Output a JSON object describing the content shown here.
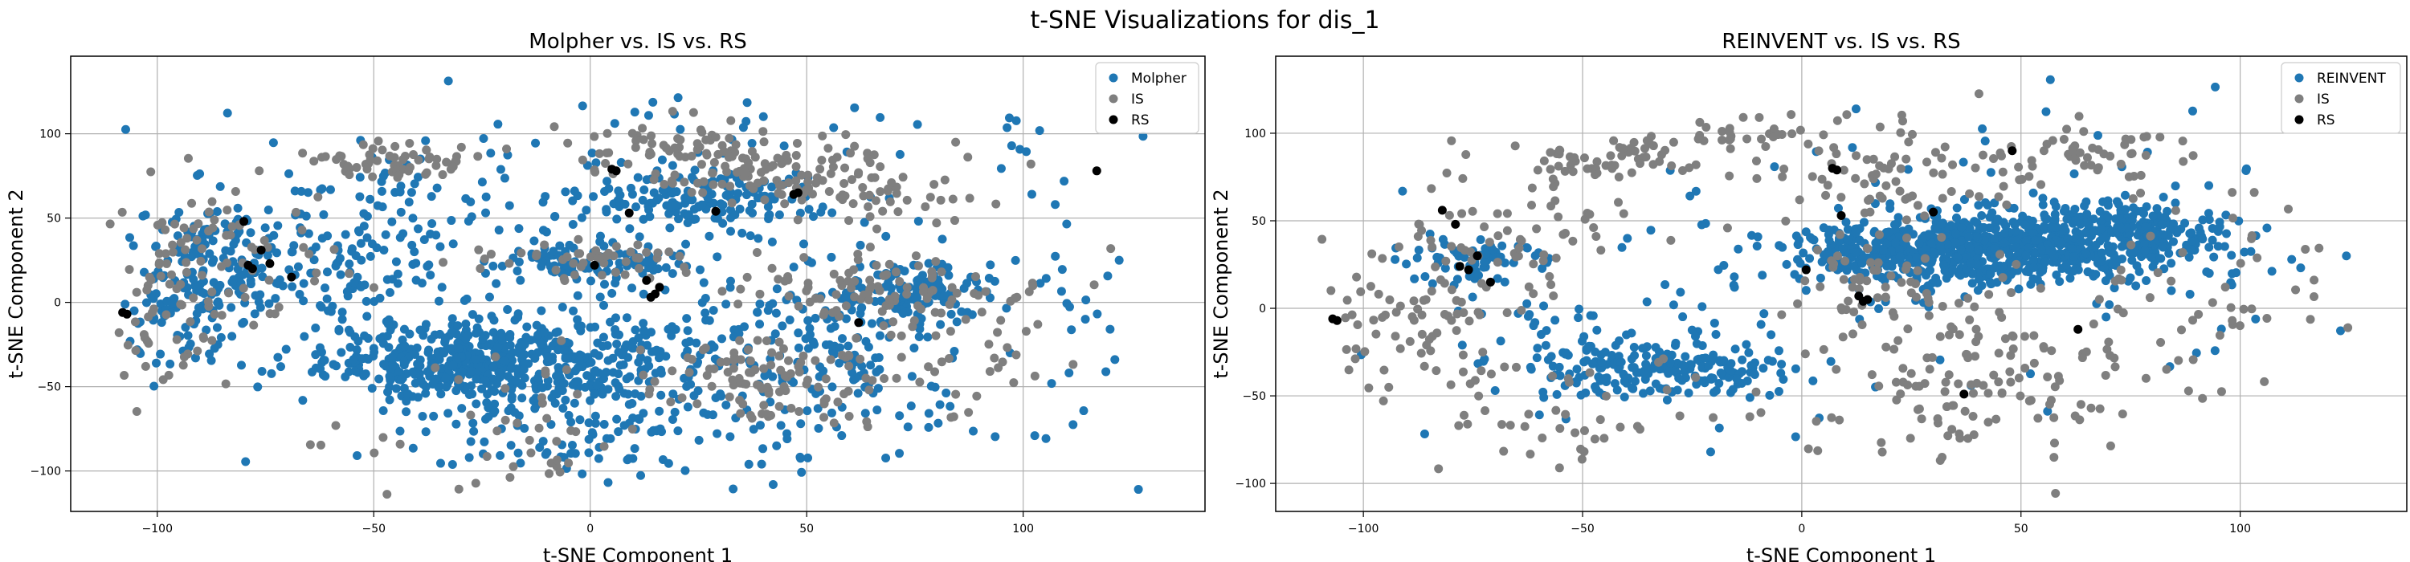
{
  "suptitle": "t-SNE Visualizations for dis_1",
  "colors": {
    "primary": "#1f77b4",
    "IS": "#7f7f7f",
    "RS": "#000000"
  },
  "chart_data": [
    {
      "type": "scatter",
      "title": "Molpher vs. IS vs. RS",
      "xlabel": "t-SNE Component 1",
      "ylabel": "t-SNE Component 2",
      "xlim": [
        -120,
        142
      ],
      "ylim": [
        -124,
        146
      ],
      "xticks": [
        -100,
        -50,
        0,
        50,
        100
      ],
      "yticks": [
        -100,
        -50,
        0,
        50,
        100
      ],
      "grid": true,
      "legend_position": "top-right",
      "series": [
        {
          "name": "Molpher",
          "color": "#1f77b4",
          "clusters": [
            {
              "cx": -25,
              "cy": -35,
              "sx": 18,
              "sy": 12,
              "n": 420
            },
            {
              "cx": -5,
              "cy": -40,
              "sx": 25,
              "sy": 25,
              "n": 180
            },
            {
              "cx": -85,
              "cy": 25,
              "sx": 10,
              "sy": 18,
              "n": 120
            },
            {
              "cx": -95,
              "cy": -10,
              "sx": 6,
              "sy": 20,
              "n": 60
            },
            {
              "cx": -60,
              "cy": 10,
              "sx": 15,
              "sy": 35,
              "n": 120
            },
            {
              "cx": 25,
              "cy": 62,
              "sx": 15,
              "sy": 8,
              "n": 150
            },
            {
              "cx": 0,
              "cy": 25,
              "sx": 12,
              "sy": 6,
              "n": 80
            },
            {
              "cx": 75,
              "cy": 5,
              "sx": 10,
              "sy": 8,
              "n": 100
            },
            {
              "cx": 60,
              "cy": -30,
              "sx": 15,
              "sy": 25,
              "n": 120
            },
            {
              "cx": 30,
              "cy": -10,
              "sx": 25,
              "sy": 40,
              "n": 150
            },
            {
              "cx": -40,
              "cy": 40,
              "sx": 20,
              "sy": 30,
              "n": 90
            },
            {
              "cx": 0,
              "cy": -85,
              "sx": 30,
              "sy": 12,
              "n": 60
            },
            {
              "cx": 45,
              "cy": 100,
              "sx": 40,
              "sy": 20,
              "n": 40
            },
            {
              "cx": 110,
              "cy": 5,
              "sx": 12,
              "sy": 40,
              "n": 30
            }
          ]
        },
        {
          "name": "IS",
          "color": "#7f7f7f",
          "clusters": [
            {
              "cx": -45,
              "cy": 85,
              "sx": 10,
              "sy": 6,
              "n": 60
            },
            {
              "cx": 20,
              "cy": 90,
              "sx": 12,
              "sy": 8,
              "n": 70
            },
            {
              "cx": 45,
              "cy": 75,
              "sx": 15,
              "sy": 10,
              "n": 90
            },
            {
              "cx": 65,
              "cy": 10,
              "sx": 15,
              "sy": 8,
              "n": 80
            },
            {
              "cx": 40,
              "cy": -45,
              "sx": 15,
              "sy": 15,
              "n": 100
            },
            {
              "cx": -85,
              "cy": 30,
              "sx": 15,
              "sy": 25,
              "n": 80
            },
            {
              "cx": -100,
              "cy": -15,
              "sx": 8,
              "sy": 25,
              "n": 40
            },
            {
              "cx": 0,
              "cy": 25,
              "sx": 15,
              "sy": 6,
              "n": 50
            },
            {
              "cx": 80,
              "cy": -30,
              "sx": 20,
              "sy": 25,
              "n": 60
            },
            {
              "cx": -20,
              "cy": -80,
              "sx": 20,
              "sy": 20,
              "n": 40
            },
            {
              "cx": 70,
              "cy": 60,
              "sx": 15,
              "sy": 15,
              "n": 40
            }
          ]
        },
        {
          "name": "RS",
          "color": "#000000",
          "x": [
            -108,
            -107,
            -80,
            -79,
            -78,
            -76,
            -74,
            -69,
            5,
            6,
            9,
            13,
            14,
            15,
            16,
            1,
            29,
            47,
            48,
            62,
            117
          ],
          "y": [
            -6,
            -7,
            48,
            22,
            20,
            31,
            23,
            15,
            79,
            78,
            53,
            13,
            3,
            5,
            9,
            22,
            54,
            64,
            65,
            -12,
            78
          ]
        }
      ]
    },
    {
      "type": "scatter",
      "title": "REINVENT vs. IS vs. RS",
      "xlabel": "t-SNE Component 1",
      "ylabel": "t-SNE Component 2",
      "xlim": [
        -120,
        138
      ],
      "ylim": [
        -116,
        144
      ],
      "xticks": [
        -100,
        -50,
        0,
        50,
        100
      ],
      "yticks": [
        -100,
        -50,
        0,
        50,
        100
      ],
      "grid": true,
      "legend_position": "top-right",
      "series": [
        {
          "name": "REINVENT",
          "color": "#1f77b4",
          "clusters": [
            {
              "cx": 45,
              "cy": 35,
              "sx": 22,
              "sy": 10,
              "n": 700
            },
            {
              "cx": 75,
              "cy": 45,
              "sx": 10,
              "sy": 8,
              "n": 150
            },
            {
              "cx": 20,
              "cy": 30,
              "sx": 10,
              "sy": 8,
              "n": 120
            },
            {
              "cx": -30,
              "cy": -35,
              "sx": 15,
              "sy": 8,
              "n": 180
            },
            {
              "cx": -50,
              "cy": -25,
              "sx": 15,
              "sy": 15,
              "n": 60
            },
            {
              "cx": -75,
              "cy": 30,
              "sx": 8,
              "sy": 8,
              "n": 60
            },
            {
              "cx": 80,
              "cy": 50,
              "sx": 40,
              "sy": 40,
              "n": 60
            },
            {
              "cx": 0,
              "cy": 0,
              "sx": 40,
              "sy": 50,
              "n": 60
            }
          ]
        },
        {
          "name": "IS",
          "color": "#7f7f7f",
          "clusters": [
            {
              "cx": -90,
              "cy": -10,
              "sx": 15,
              "sy": 25,
              "n": 90
            },
            {
              "cx": -45,
              "cy": 85,
              "sx": 15,
              "sy": 6,
              "n": 60
            },
            {
              "cx": 20,
              "cy": 80,
              "sx": 18,
              "sy": 15,
              "n": 80
            },
            {
              "cx": 40,
              "cy": -40,
              "sx": 20,
              "sy": 25,
              "n": 140
            },
            {
              "cx": -65,
              "cy": 40,
              "sx": 15,
              "sy": 20,
              "n": 60
            },
            {
              "cx": 90,
              "cy": 5,
              "sx": 20,
              "sy": 30,
              "n": 60
            },
            {
              "cx": 70,
              "cy": 90,
              "sx": 10,
              "sy": 6,
              "n": 40
            },
            {
              "cx": -15,
              "cy": 100,
              "sx": 15,
              "sy": 6,
              "n": 30
            },
            {
              "cx": 15,
              "cy": 20,
              "sx": 10,
              "sy": 20,
              "n": 50
            },
            {
              "cx": -45,
              "cy": -60,
              "sx": 20,
              "sy": 20,
              "n": 40
            }
          ]
        },
        {
          "name": "RS",
          "color": "#000000",
          "x": [
            -107,
            -106,
            -82,
            -79,
            -78,
            -76,
            -74,
            -71,
            7,
            8,
            9,
            13,
            14,
            15,
            1,
            30,
            48,
            63,
            37
          ],
          "y": [
            -6,
            -7,
            56,
            48,
            24,
            22,
            30,
            15,
            80,
            79,
            53,
            7,
            4,
            5,
            22,
            55,
            90,
            -12,
            -49
          ]
        }
      ]
    }
  ]
}
